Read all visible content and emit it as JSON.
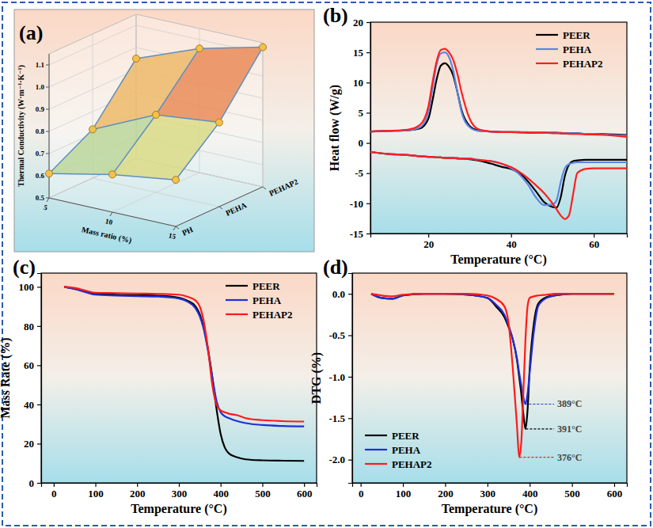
{
  "chart_data": [
    {
      "type": "surface",
      "title": "(a)",
      "xlabel": "Mass ratio (%)",
      "ylabel": "Thermal Conductivity (W·m⁻¹·K⁻¹)",
      "x": [
        5,
        10,
        15
      ],
      "xlim": [
        5,
        15
      ],
      "xticks": [
        5,
        10,
        15
      ],
      "categories": [
        "PH",
        "PEHA",
        "PEHAP2"
      ],
      "values": [
        [
          0.61,
          0.67,
          0.71
        ],
        [
          0.72,
          0.85,
          0.88
        ],
        [
          0.95,
          1.06,
          1.13
        ]
      ],
      "ylim": [
        0.5,
        1.15
      ],
      "yticks": [
        0.5,
        0.6,
        0.7,
        0.8,
        0.9,
        {
          "value": 1.0,
          "label": "1.0"
        },
        1.1
      ],
      "color": "#f2c14e"
    },
    {
      "type": "line",
      "title": "(b)",
      "xlabel": "Temperature (°C)",
      "ylabel": "Heat flow (W/g)",
      "x": [
        6,
        10,
        15,
        18,
        20,
        21,
        22,
        23,
        24,
        25,
        26,
        27,
        28,
        30,
        32,
        35,
        38,
        40,
        42,
        44,
        46,
        48,
        50,
        51,
        52,
        53,
        54,
        55,
        56,
        58,
        60,
        65,
        68
      ],
      "xlim": [
        6,
        68
      ],
      "xticks": [
        20,
        40,
        60
      ],
      "ylim": [
        -15,
        20
      ],
      "yticks": [
        -15,
        -10,
        -5,
        0,
        5,
        10,
        15,
        20
      ],
      "legend": "upper right",
      "series": [
        {
          "name": "PEER",
          "color": "#000000",
          "segments": [
            {
              "values": [
                1.9,
                2.0,
                2.1,
                2.4,
                4.0,
                7.0,
                10.5,
                12.8,
                13.2,
                12.6,
                11.2,
                8.5,
                5.5,
                2.8,
                2.1,
                1.9,
                1.8,
                1.8,
                1.8,
                1.7,
                1.7,
                1.7,
                1.7,
                1.7,
                1.6,
                1.6,
                1.6,
                1.6,
                1.6,
                1.5,
                1.5,
                1.4,
                1.3
              ]
            },
            {
              "values": [
                -1.5,
                -1.8,
                -2.0,
                -2.2,
                -2.3,
                -2.3,
                -2.4,
                -2.4,
                -2.5,
                -2.5,
                -2.5,
                -2.6,
                -2.6,
                -2.7,
                -2.9,
                -3.4,
                -4.0,
                -4.3,
                -5.0,
                -6.3,
                -8.0,
                -9.8,
                -10.6,
                -10.7,
                -9.0,
                -5.5,
                -3.6,
                -3.0,
                -2.9,
                -2.8,
                -2.8,
                -2.8,
                -2.8
              ]
            }
          ]
        },
        {
          "name": "PEHA",
          "color": "#5b86e5",
          "segments": [
            {
              "values": [
                1.9,
                2.0,
                2.1,
                2.6,
                5.0,
                9.0,
                13.0,
                14.8,
                15.0,
                14.2,
                12.0,
                8.5,
                5.2,
                2.6,
                2.0,
                1.9,
                1.8,
                1.8,
                1.8,
                1.8,
                1.7,
                1.7,
                1.7,
                1.7,
                1.7,
                1.6,
                1.6,
                1.6,
                1.6,
                1.5,
                1.5,
                1.3,
                1.2
              ]
            },
            {
              "values": [
                -1.5,
                -1.8,
                -2.0,
                -2.2,
                -2.3,
                -2.3,
                -2.4,
                -2.4,
                -2.5,
                -2.5,
                -2.5,
                -2.5,
                -2.6,
                -2.6,
                -2.8,
                -3.0,
                -3.5,
                -4.2,
                -5.2,
                -6.8,
                -9.0,
                -10.3,
                -10.2,
                -9.5,
                -6.5,
                -4.2,
                -3.5,
                -3.3,
                -3.2,
                -3.2,
                -3.2,
                -3.2,
                -3.2
              ]
            }
          ]
        },
        {
          "name": "PEHAP2",
          "color": "#ff1f1f",
          "segments": [
            {
              "values": [
                1.9,
                2.0,
                2.2,
                3.0,
                6.0,
                10.0,
                13.5,
                15.4,
                15.6,
                15.0,
                13.8,
                11.5,
                8.5,
                4.0,
                2.3,
                1.9,
                1.8,
                1.8,
                1.7,
                1.7,
                1.7,
                1.7,
                1.6,
                1.6,
                1.6,
                1.6,
                1.5,
                1.5,
                1.5,
                1.4,
                1.4,
                1.2,
                1.0
              ]
            },
            {
              "values": [
                -1.5,
                -1.8,
                -2.0,
                -2.2,
                -2.3,
                -2.3,
                -2.4,
                -2.4,
                -2.5,
                -2.5,
                -2.5,
                -2.5,
                -2.6,
                -2.6,
                -2.8,
                -3.0,
                -3.5,
                -4.0,
                -4.8,
                -5.8,
                -7.0,
                -8.3,
                -10.0,
                -11.0,
                -12.0,
                -12.6,
                -12.0,
                -8.5,
                -5.0,
                -4.3,
                -4.2,
                -4.2,
                -4.2
              ]
            }
          ]
        }
      ]
    },
    {
      "type": "line",
      "title": "(c)",
      "xlabel": "Temperature (°C)",
      "ylabel": "Mass Rate (%)",
      "x": [
        25,
        50,
        100,
        150,
        200,
        250,
        300,
        320,
        340,
        350,
        360,
        370,
        380,
        390,
        400,
        410,
        420,
        440,
        460,
        500,
        550,
        600
      ],
      "xlim": [
        -30,
        630
      ],
      "xticks": [
        0,
        100,
        200,
        300,
        400,
        500,
        600
      ],
      "ylim": [
        0,
        107
      ],
      "yticks": [
        0,
        20,
        40,
        60,
        80,
        100
      ],
      "legend": "upper right",
      "series": [
        {
          "name": "PEER",
          "color": "#000000",
          "values": [
            100,
            99,
            96.5,
            96,
            95.8,
            95.5,
            94.5,
            93,
            90,
            86,
            79,
            68,
            54,
            38,
            25,
            18,
            15,
            13,
            12,
            11.5,
            11.3,
            11.2
          ]
        },
        {
          "name": "PEHA",
          "color": "#1f2fd6",
          "values": [
            100,
            99,
            96,
            95.5,
            95.2,
            95,
            94,
            92.5,
            89,
            85,
            78,
            67,
            54,
            42,
            36,
            34,
            33,
            31.5,
            30.5,
            29.5,
            29,
            28.8
          ]
        },
        {
          "name": "PEHAP2",
          "color": "#ff1a1a",
          "values": [
            100,
            99.5,
            97,
            96.8,
            96.6,
            96.4,
            96,
            95,
            93,
            90,
            82,
            68,
            50,
            40,
            37,
            36,
            35.3,
            34.5,
            33,
            32,
            31.5,
            31.3
          ]
        }
      ]
    },
    {
      "type": "line",
      "title": "(d)",
      "xlabel": "Temperature (°C)",
      "ylabel": "DTG (%)",
      "x": [
        25,
        50,
        75,
        100,
        150,
        200,
        250,
        300,
        320,
        340,
        350,
        360,
        370,
        375,
        380,
        385,
        390,
        395,
        400,
        410,
        420,
        440,
        460,
        500,
        550,
        600
      ],
      "xlim": [
        -20,
        630
      ],
      "xticks": [
        0,
        100,
        200,
        300,
        400,
        500,
        600
      ],
      "ylim": [
        -2.28,
        0.25
      ],
      "yticks": [
        {
          "value": 0,
          "label": "0.0"
        },
        -0.5,
        {
          "value": -1,
          "label": "-1.0"
        },
        -1.5,
        {
          "value": -2,
          "label": "-2.0"
        }
      ],
      "legend": "lower left",
      "series": [
        {
          "name": "PEER",
          "color": "#000000",
          "values": [
            0,
            -0.05,
            -0.06,
            -0.02,
            0,
            0,
            -0.01,
            -0.05,
            -0.15,
            -0.28,
            -0.4,
            -0.55,
            -0.8,
            -1.0,
            -1.2,
            -1.45,
            -1.63,
            -1.4,
            -0.9,
            -0.35,
            -0.12,
            -0.04,
            -0.02,
            0,
            0,
            0
          ]
        },
        {
          "name": "PEHA",
          "color": "#1f2fd6",
          "values": [
            0,
            -0.05,
            -0.06,
            -0.02,
            0,
            0,
            -0.01,
            -0.05,
            -0.13,
            -0.25,
            -0.38,
            -0.55,
            -0.78,
            -0.95,
            -1.1,
            -1.25,
            -1.33,
            -1.2,
            -0.95,
            -0.45,
            -0.15,
            -0.05,
            -0.02,
            0,
            0,
            0
          ]
        },
        {
          "name": "PEHAP2",
          "color": "#ff1a1a",
          "values": [
            0,
            -0.02,
            -0.03,
            -0.01,
            0,
            0,
            0,
            -0.02,
            -0.06,
            -0.15,
            -0.35,
            -0.9,
            -1.6,
            -1.97,
            -1.8,
            -1.2,
            -0.55,
            -0.15,
            -0.05,
            -0.03,
            -0.02,
            -0.01,
            0,
            0,
            0,
            0
          ]
        }
      ],
      "annotations": [
        {
          "text": "389°C",
          "x": 389,
          "y": -1.33,
          "color": "#1f2fd6"
        },
        {
          "text": "391°C",
          "x": 391,
          "y": -1.63,
          "color": "#000000"
        },
        {
          "text": "376°C",
          "x": 376,
          "y": -1.97,
          "color": "#ff1a1a"
        }
      ]
    }
  ]
}
